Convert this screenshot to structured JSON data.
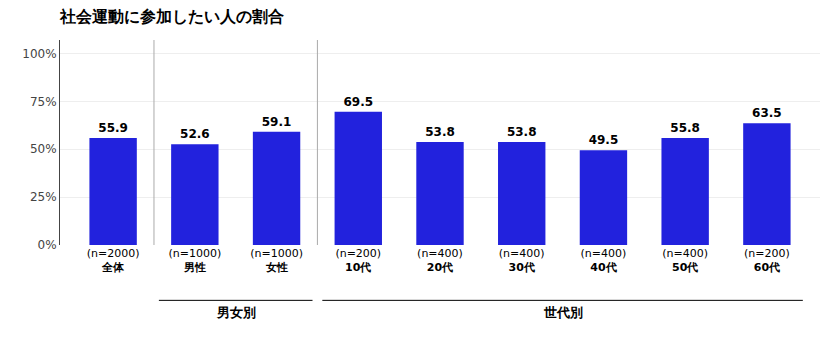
{
  "chart_data": {
    "type": "bar",
    "title": "社会運動に参加したい人の割合",
    "categories": [
      "全体",
      "男性",
      "女性",
      "10代",
      "20代",
      "30代",
      "40代",
      "50代",
      "60代"
    ],
    "n_labels": [
      "(n=2000)",
      "(n=1000)",
      "(n=1000)",
      "(n=200)",
      "(n=400)",
      "(n=400)",
      "(n=400)",
      "(n=400)",
      "(n=200)"
    ],
    "values": [
      55.9,
      52.6,
      59.1,
      69.5,
      53.8,
      53.8,
      49.5,
      55.8,
      63.5
    ],
    "color": "#2222dd",
    "ylim": [
      0,
      107
    ],
    "yticks": [
      {
        "value": 0,
        "label": "0%"
      },
      {
        "value": 25,
        "label": "25%"
      },
      {
        "value": 50,
        "label": "50%"
      },
      {
        "value": 75,
        "label": "75%"
      },
      {
        "value": 100,
        "label": "100%"
      }
    ],
    "grid": true,
    "data_labels": true,
    "groups": [
      {
        "label": "男女別",
        "categories": [
          "男性",
          "女性"
        ]
      },
      {
        "label": "世代別",
        "categories": [
          "10代",
          "20代",
          "30代",
          "40代",
          "50代",
          "60代"
        ]
      }
    ]
  }
}
